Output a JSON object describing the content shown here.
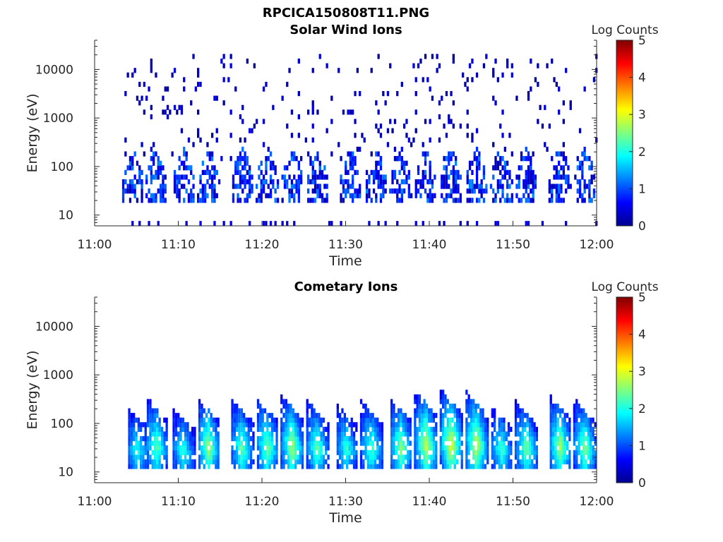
{
  "figure": {
    "title": "RPCICA150808T11.PNG"
  },
  "colorbar": {
    "label": "Log Counts",
    "ticks": [
      0,
      1,
      2,
      3,
      4,
      5
    ],
    "colormap": "jet",
    "range": [
      0,
      5
    ]
  },
  "chart_data": [
    {
      "type": "heatmap",
      "title": "Solar Wind Ions",
      "xlabel": "Time",
      "ylabel": "Energy (eV)",
      "xticks": [
        "11:00",
        "11:10",
        "11:20",
        "11:30",
        "11:40",
        "11:50",
        "12:00"
      ],
      "xlim_minutes": [
        0,
        60
      ],
      "yscale": "log",
      "ylim": [
        6,
        40000
      ],
      "yticks": [
        "10",
        "100",
        "1000",
        "10000"
      ],
      "data_start_minutes": 3,
      "colorbar_range": [
        0,
        5
      ],
      "sweep_minutes": [
        4.5,
        7.2,
        10.5,
        13.5,
        17.5,
        20.5,
        23.5,
        26.5,
        30.5,
        33.5,
        36.5,
        39.5,
        42.5,
        45.5,
        48.5,
        51.5,
        55.5,
        58.5
      ],
      "typical_log_counts": [
        0.3,
        1.3
      ]
    },
    {
      "type": "heatmap",
      "title": "Cometary Ions",
      "xlabel": "Time",
      "ylabel": "Energy (eV)",
      "xticks": [
        "11:00",
        "11:10",
        "11:20",
        "11:30",
        "11:40",
        "11:50",
        "12:00"
      ],
      "xlim_minutes": [
        0,
        60
      ],
      "yscale": "log",
      "ylim": [
        6,
        40000
      ],
      "yticks": [
        "10",
        "100",
        "1000",
        "10000"
      ],
      "data_start_minutes": 4,
      "colorbar_range": [
        0,
        5
      ],
      "sweep_minutes": [
        5.0,
        7.3,
        10.5,
        13.5,
        17.5,
        20.5,
        23.5,
        26.5,
        30.0,
        33.0,
        36.5,
        39.5,
        42.5,
        45.5,
        48.5,
        51.5,
        55.5,
        58.5
      ],
      "sweep_peak_energy": [
        180,
        300,
        150,
        280,
        260,
        300,
        320,
        250,
        220,
        240,
        280,
        400,
        460,
        400,
        190,
        230,
        330,
        270
      ],
      "sweep_peak_log_counts": [
        1.9,
        2.3,
        2.0,
        2.6,
        2.3,
        2.4,
        2.6,
        2.3,
        2.0,
        2.2,
        2.5,
        2.8,
        2.9,
        2.8,
        2.1,
        2.4,
        2.6,
        2.5
      ]
    }
  ]
}
